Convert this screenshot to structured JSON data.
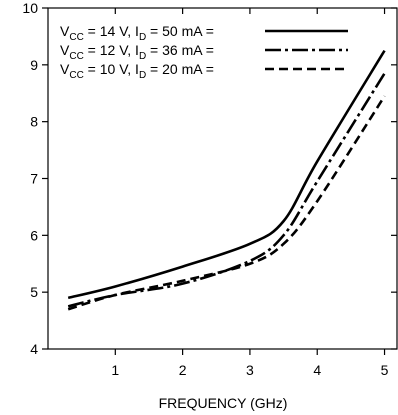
{
  "chart_data": {
    "type": "line",
    "title": "",
    "xlabel": "FREQUENCY (GHz)",
    "ylabel": "",
    "xlim": [
      0.0,
      5.2
    ],
    "ylim": [
      4,
      10
    ],
    "xticks": [
      1,
      2,
      3,
      4,
      5
    ],
    "yticks": [
      4,
      5,
      6,
      7,
      8,
      9,
      10
    ],
    "grid": false,
    "legend_position": "top-left",
    "series": [
      {
        "name": "V_CC = 14 V, I_D = 50 mA =",
        "legend": {
          "v_main": "V",
          "v_sub": "CC",
          "v_rest": " = 14 V, I",
          "i_sub": "D",
          "i_rest": " = 50 mA ="
        },
        "dash": "solid",
        "x": [
          0.3,
          1.0,
          2.0,
          3.0,
          3.5,
          4.0,
          5.0
        ],
        "y": [
          4.9,
          5.1,
          5.45,
          5.85,
          6.25,
          7.3,
          9.25
        ]
      },
      {
        "name": "V_CC = 12 V, I_D = 36 mA =",
        "legend": {
          "v_main": "V",
          "v_sub": "CC",
          "v_rest": " = 12 V, I",
          "i_sub": "D",
          "i_rest": " = 36 mA ="
        },
        "dash": "dashdot",
        "x": [
          0.3,
          1.0,
          2.0,
          3.0,
          3.5,
          4.0,
          5.0
        ],
        "y": [
          4.75,
          4.95,
          5.15,
          5.55,
          6.0,
          6.95,
          8.85
        ]
      },
      {
        "name": "V_CC = 10 V, I_D = 20 mA =",
        "legend": {
          "v_main": "V",
          "v_sub": "CC",
          "v_rest": " = 10 V, I",
          "i_sub": "D",
          "i_rest": " = 20 mA ="
        },
        "dash": "dashed",
        "x": [
          0.3,
          1.0,
          2.0,
          3.0,
          3.5,
          4.0,
          5.0
        ],
        "y": [
          4.7,
          4.95,
          5.2,
          5.5,
          5.85,
          6.6,
          8.45
        ]
      }
    ]
  }
}
